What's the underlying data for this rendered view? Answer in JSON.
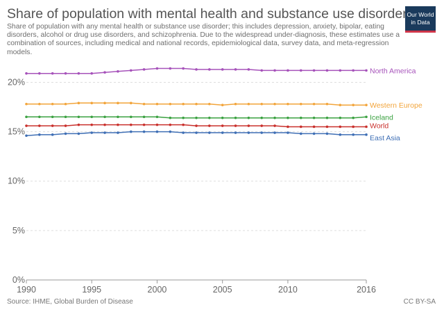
{
  "title": "Share of population with mental health and substance use disorders",
  "subtitle": "Share of population with any mental health or substance use disorder; this includes depression, anxiety, bipolar, eating disorders, alcohol or drug use disorders, and schizophrenia. Due to the widespread under-diagnosis, these estimates use a combination of sources, including medical and national records, epidemiological data, survey data, and meta-regression models.",
  "logo": {
    "line1": "Our World",
    "line2": "in Data"
  },
  "footer": {
    "source": "Source: IHME, Global Burden of Disease",
    "license": "CC BY-SA"
  },
  "colors": {
    "North America": "#a652ba",
    "Western Europe": "#f2a43a",
    "Iceland": "#3aa140",
    "World": "#c9302c",
    "East Asia": "#3f6fb5",
    "grid": "#dddddd",
    "axis_text": "#666666"
  },
  "chart_data": {
    "type": "line",
    "x": [
      1990,
      1991,
      1992,
      1993,
      1994,
      1995,
      1996,
      1997,
      1998,
      1999,
      2000,
      2001,
      2002,
      2003,
      2004,
      2005,
      2006,
      2007,
      2008,
      2009,
      2010,
      2011,
      2012,
      2013,
      2014,
      2015,
      2016
    ],
    "series": [
      {
        "name": "North America",
        "values": [
          20.9,
          20.9,
          20.9,
          20.9,
          20.9,
          20.9,
          21.0,
          21.1,
          21.2,
          21.3,
          21.4,
          21.4,
          21.4,
          21.3,
          21.3,
          21.3,
          21.3,
          21.3,
          21.2,
          21.2,
          21.2,
          21.2,
          21.2,
          21.2,
          21.2,
          21.2,
          21.2
        ]
      },
      {
        "name": "Western Europe",
        "values": [
          17.8,
          17.8,
          17.8,
          17.8,
          17.9,
          17.9,
          17.9,
          17.9,
          17.9,
          17.8,
          17.8,
          17.8,
          17.8,
          17.8,
          17.8,
          17.7,
          17.8,
          17.8,
          17.8,
          17.8,
          17.8,
          17.8,
          17.8,
          17.8,
          17.7,
          17.7,
          17.7
        ]
      },
      {
        "name": "Iceland",
        "values": [
          16.5,
          16.5,
          16.5,
          16.5,
          16.5,
          16.5,
          16.5,
          16.5,
          16.5,
          16.5,
          16.5,
          16.4,
          16.4,
          16.4,
          16.4,
          16.4,
          16.4,
          16.4,
          16.4,
          16.4,
          16.4,
          16.4,
          16.4,
          16.4,
          16.4,
          16.4,
          16.5
        ]
      },
      {
        "name": "World",
        "values": [
          15.6,
          15.6,
          15.6,
          15.6,
          15.7,
          15.7,
          15.7,
          15.7,
          15.7,
          15.7,
          15.7,
          15.7,
          15.7,
          15.6,
          15.6,
          15.6,
          15.6,
          15.6,
          15.6,
          15.6,
          15.5,
          15.5,
          15.5,
          15.5,
          15.5,
          15.5,
          15.5
        ]
      },
      {
        "name": "East Asia",
        "values": [
          14.6,
          14.7,
          14.7,
          14.8,
          14.8,
          14.9,
          14.9,
          14.9,
          15.0,
          15.0,
          15.0,
          15.0,
          14.9,
          14.9,
          14.9,
          14.9,
          14.9,
          14.9,
          14.9,
          14.9,
          14.9,
          14.8,
          14.8,
          14.8,
          14.7,
          14.7,
          14.7
        ]
      }
    ],
    "yticks": [
      "0%",
      "5%",
      "10%",
      "15%",
      "20%"
    ],
    "ytick_values": [
      0,
      5,
      10,
      15,
      20
    ],
    "xticks": [
      1990,
      1995,
      2000,
      2005,
      2010,
      2016
    ],
    "ylim": [
      0,
      22
    ],
    "xlim": [
      1990,
      2016
    ],
    "grid": "horizontal dashed",
    "legend": "line-end labels"
  }
}
